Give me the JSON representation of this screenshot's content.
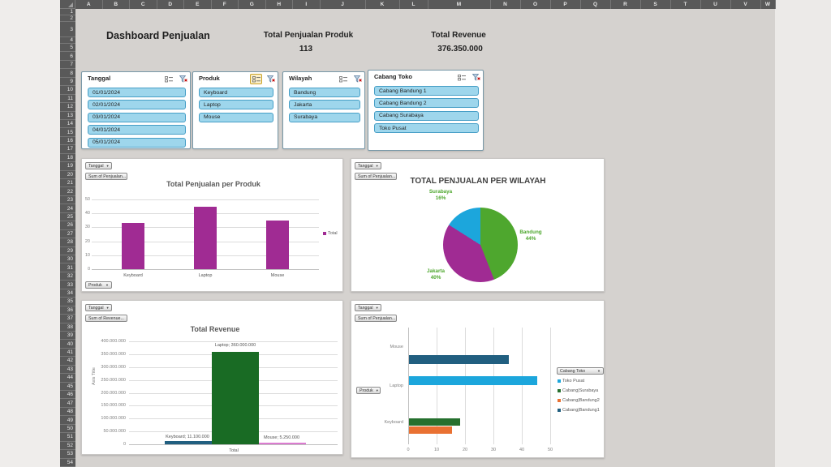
{
  "header": {
    "title": "Dashboard Penjualan",
    "kpi1_label": "Total Penjualan Produk",
    "kpi1_value": "113",
    "kpi2_label": "Total Revenue",
    "kpi2_value": "376.350.000"
  },
  "sheet": {
    "columns": [
      "A",
      "B",
      "C",
      "D",
      "E",
      "F",
      "G",
      "H",
      "I",
      "J",
      "K",
      "L",
      "M",
      "N",
      "O",
      "P",
      "Q",
      "R",
      "S",
      "T",
      "U",
      "V",
      "W"
    ],
    "rows": [
      "1",
      "2",
      "3",
      "4",
      "5",
      "6",
      "7",
      "8",
      "9",
      "10",
      "11",
      "12",
      "13",
      "14",
      "15",
      "16",
      "17",
      "18",
      "19",
      "20",
      "21",
      "22",
      "23",
      "24",
      "25",
      "26",
      "27",
      "28",
      "29",
      "30",
      "31",
      "32",
      "33",
      "34",
      "35",
      "36",
      "37",
      "38",
      "39",
      "40",
      "41",
      "42",
      "43",
      "44",
      "45",
      "46",
      "47",
      "48",
      "49",
      "50",
      "51",
      "52",
      "53",
      "54"
    ]
  },
  "slicers": [
    {
      "title": "Tanggal",
      "items": [
        "01/01/2024",
        "02/01/2024",
        "03/01/2024",
        "04/01/2024",
        "05/01/2024"
      ],
      "multiselect_active": false
    },
    {
      "title": "Produk",
      "items": [
        "Keyboard",
        "Laptop",
        "Mouse"
      ],
      "multiselect_active": true
    },
    {
      "title": "Wilayah",
      "items": [
        "Bandung",
        "Jakarta",
        "Surabaya"
      ],
      "multiselect_active": false
    },
    {
      "title": "Cabang Toko",
      "items": [
        "Cabang Bandung 1",
        "Cabang Bandung 2",
        "Cabang Surabaya",
        "Toko Pusat"
      ],
      "multiselect_active": false
    }
  ],
  "chart_data": [
    {
      "id": "penjualan-per-produk",
      "type": "bar",
      "title": "Total Penjualan per Produk",
      "categories": [
        "Keyboard",
        "Laptop",
        "Mouse"
      ],
      "values": [
        33,
        45,
        35
      ],
      "bar_color": "#A02B93",
      "ylim": [
        0,
        50
      ],
      "yticks": [
        "0",
        "10",
        "20",
        "30",
        "40",
        "50"
      ],
      "legend": [
        {
          "label": "Total",
          "color": "#A02B93"
        }
      ],
      "legend_position": "right",
      "field_buttons": {
        "top": [
          "Tanggal",
          "Sum of Penjualan..."
        ],
        "bottom": [
          "Produk"
        ]
      }
    },
    {
      "id": "penjualan-per-wilayah",
      "type": "pie",
      "title": "TOTAL PENJUALAN PER WILAYAH",
      "slices": [
        {
          "label": "Bandung",
          "pct": 44,
          "color": "#4EA72E"
        },
        {
          "label": "Jakarta",
          "pct": 40,
          "color": "#A02B93"
        },
        {
          "label": "Surabaya",
          "pct": 16,
          "color": "#1CA6DC"
        }
      ],
      "label_color": "#4EA72E",
      "field_buttons": {
        "top": [
          "Tanggal",
          "Sum of Penjualan..."
        ]
      }
    },
    {
      "id": "total-revenue",
      "type": "bar-grouped",
      "title": "Total Revenue",
      "category": "Total",
      "series": [
        {
          "name": "Keyboard",
          "value": 11100000,
          "label": "Keyboard; 11.100.000",
          "color": "#215F80"
        },
        {
          "name": "Laptop",
          "value": 360000000,
          "label": "Laptop; 360.000.000",
          "color": "#196B24"
        },
        {
          "name": "Mouse",
          "value": 5250000,
          "label": "Mouse; 5.250.000",
          "color": "#DB7BD0"
        }
      ],
      "ylim": [
        0,
        400000000
      ],
      "yticks": [
        "0",
        "50.000.000",
        "100.000.000",
        "150.000.000",
        "200.000.000",
        "250.000.000",
        "300.000.000",
        "350.000.000",
        "400.000.000"
      ],
      "ylabel": "Axis Title",
      "xlabel": "Total",
      "field_buttons": {
        "top": [
          "Tanggal",
          "Sum of Revenue..."
        ]
      }
    },
    {
      "id": "penjualan-per-cabang",
      "type": "hbar",
      "categories": [
        "Keyboard",
        "Laptop",
        "Mouse"
      ],
      "rows": [
        {
          "category": "Mouse",
          "bars": [
            {
              "series": "Cabang|Bandung1",
              "value": 35,
              "color": "#215F80"
            }
          ]
        },
        {
          "category": "Laptop",
          "bars": [
            {
              "series": "Toko Pusat",
              "value": 45,
              "color": "#1CA6DC"
            }
          ]
        },
        {
          "category": "Keyboard",
          "bars": [
            {
              "series": "Cabang|Surabaya",
              "value": 18,
              "color": "#26702E"
            },
            {
              "series": "Cabang|Bandung2",
              "value": 15,
              "color": "#E97132"
            }
          ]
        }
      ],
      "xlim": [
        0,
        50
      ],
      "xticks": [
        "0",
        "10",
        "20",
        "30",
        "40",
        "50"
      ],
      "legend": [
        {
          "label": "Toko Pusat",
          "color": "#1CA6DC"
        },
        {
          "label": "Cabang|Surabaya",
          "color": "#26702E"
        },
        {
          "label": "Cabang|Bandung2",
          "color": "#E97132"
        },
        {
          "label": "Cabang|Bandung1",
          "color": "#215F80"
        }
      ],
      "legend_button": "Cabang Toko",
      "field_buttons": {
        "top": [
          "Tanggal",
          "Sum of Penjualan..."
        ],
        "left": [
          "Produk"
        ]
      }
    }
  ]
}
